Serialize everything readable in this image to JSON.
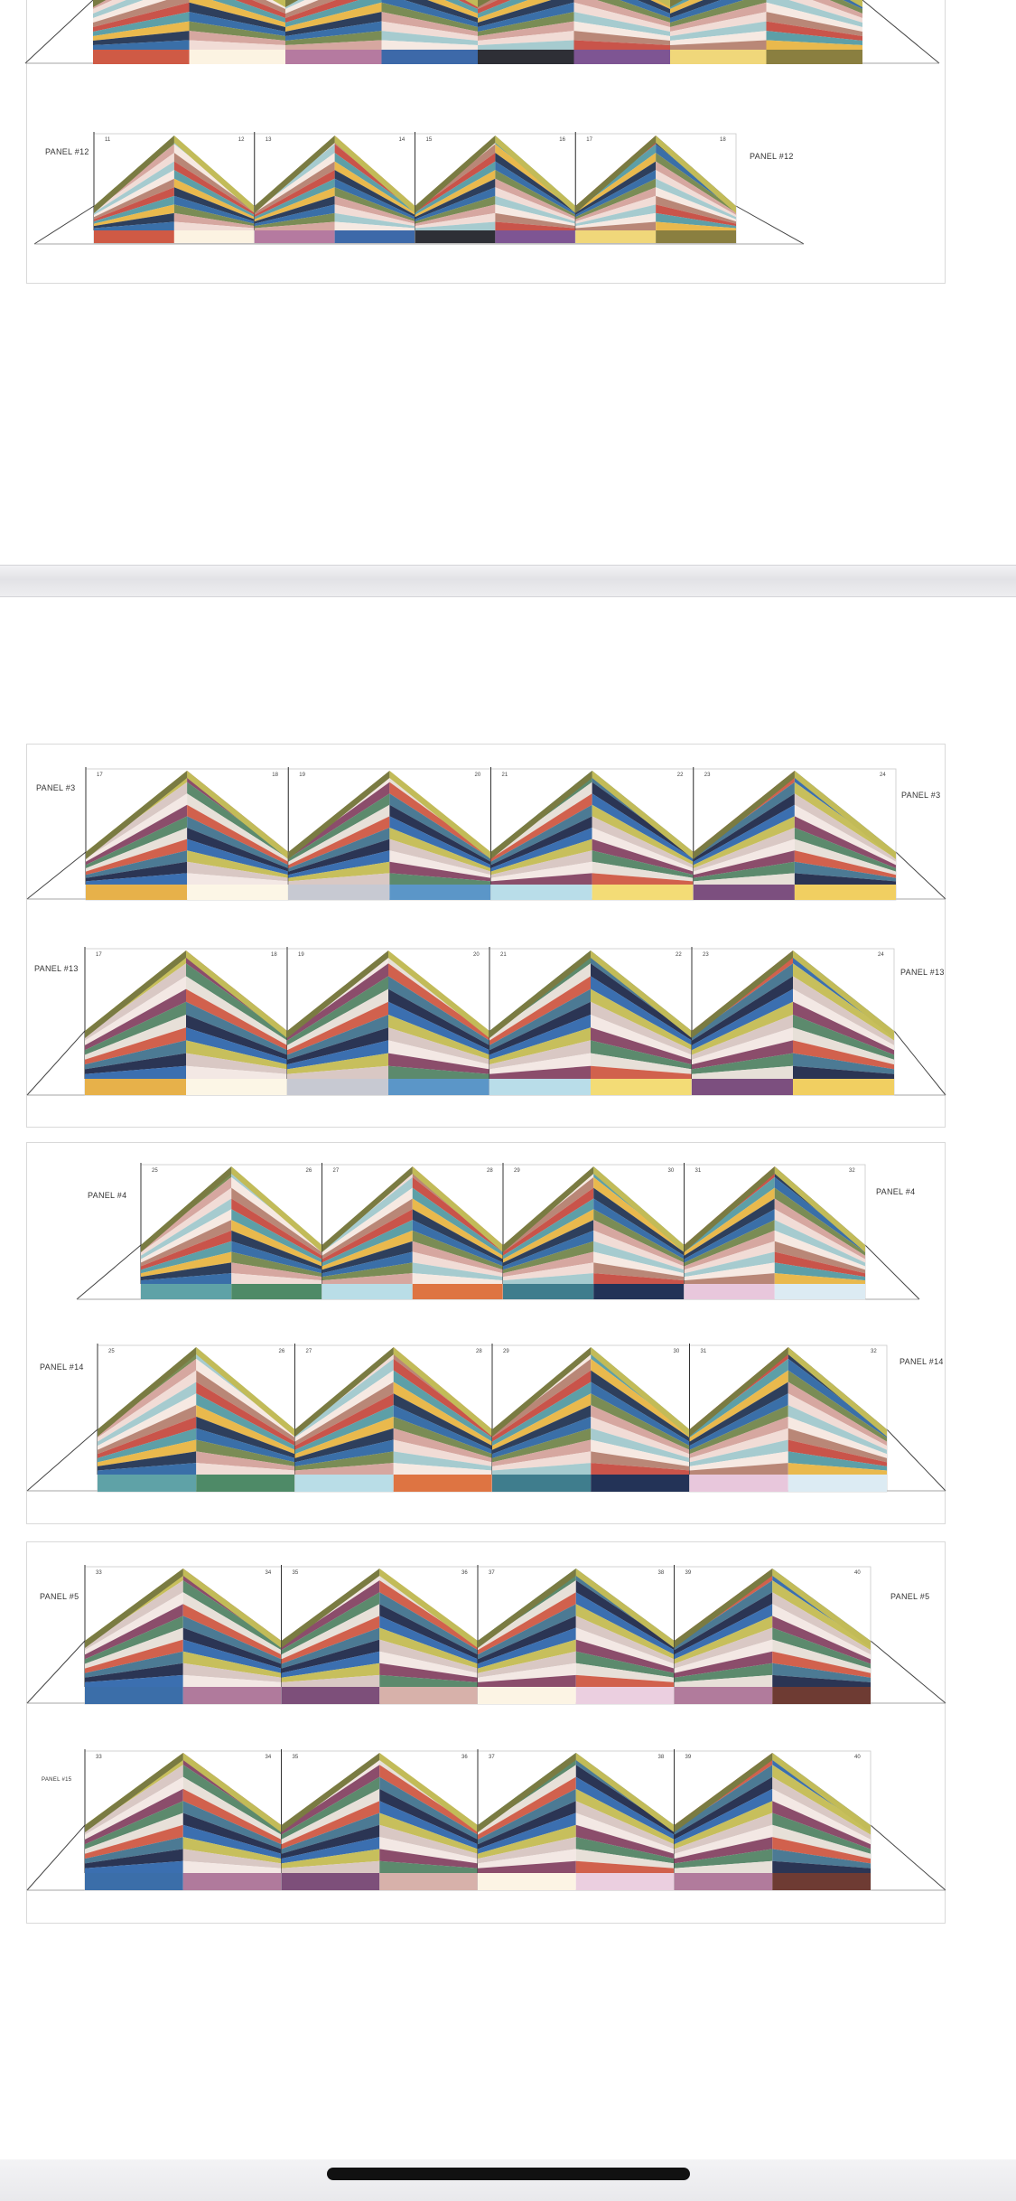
{
  "document": {
    "rows": [
      {
        "id": "r0",
        "labels": []
      },
      {
        "id": "r1",
        "labels": [
          "PANEL #12",
          "PANEL #12"
        ]
      },
      {
        "id": "r2",
        "labels": [
          "PANEL #3",
          "PANEL #3"
        ]
      },
      {
        "id": "r3",
        "labels": [
          "PANEL #13",
          "PANEL #13"
        ]
      },
      {
        "id": "r4",
        "labels": [
          "PANEL #4",
          "PANEL #4"
        ]
      },
      {
        "id": "r5",
        "labels": [
          "PANEL #14",
          "PANEL #14"
        ]
      },
      {
        "id": "r6",
        "labels": [
          "PANEL #5",
          "PANEL #5"
        ]
      },
      {
        "id": "r7",
        "labels": [
          "PANEL #15",
          ""
        ]
      }
    ]
  },
  "panel_colors": {
    "stripes_a": [
      "#7a8c55",
      "#d6a7a0",
      "#f1dcd6",
      "#a6cbcf",
      "#f6e9e2",
      "#b98777",
      "#c9544a",
      "#5d9fa7",
      "#e9b94d",
      "#2e3f5c",
      "#3a6fa8"
    ],
    "stripes_b": [
      "#c7bf5c",
      "#d9c8c4",
      "#f3e8e4",
      "#8b4d6b",
      "#5c8a6d",
      "#e7e0d8",
      "#d1614d",
      "#4c7a94",
      "#2b3554",
      "#3b6fb0"
    ],
    "blocks_a": [
      "#cf5a45",
      "#fcf3e2",
      "#b57aa0",
      "#3d69a9",
      "#2e2f36",
      "#7e5593",
      "#f0d77a",
      "#8a7f40"
    ],
    "blocks_b": [
      "#e7b14a",
      "#fcf6e6",
      "#c7c9d2",
      "#5b96c8",
      "#b9dde9",
      "#f3dc76",
      "#7c4f7f",
      "#f1cf61"
    ],
    "blocks_c": [
      "#5fa2a7",
      "#4e8a67",
      "#b9dde7",
      "#de7442",
      "#3f7d8d",
      "#233357",
      "#e8c7dc",
      "#dcebf3"
    ],
    "blocks_d": [
      "#3b6ea9",
      "#b07a9c",
      "#7d4f7a",
      "#d7b1aa",
      "#fcf4e4",
      "#ebcfe0",
      "#b17b9c",
      "#6e3b33"
    ],
    "page_gap": "#e6e6ea",
    "border": "#d9d9d9"
  },
  "page_numbers": {
    "r1": [
      "11",
      "12",
      "13",
      "14",
      "15",
      "16",
      "17",
      "18"
    ],
    "r2": [
      "17",
      "18",
      "19",
      "20",
      "21",
      "22",
      "23",
      "24"
    ],
    "r3": [
      "17",
      "18",
      "19",
      "20",
      "21",
      "22",
      "23",
      "24"
    ],
    "r4": [
      "25",
      "26",
      "27",
      "28",
      "29",
      "30",
      "31",
      "32"
    ],
    "r5": [
      "25",
      "26",
      "27",
      "28",
      "29",
      "30",
      "31",
      "32"
    ],
    "r6": [
      "33",
      "34",
      "35",
      "36",
      "37",
      "38",
      "39",
      "40"
    ],
    "r7": [
      "33",
      "34",
      "35",
      "36",
      "37",
      "38",
      "39",
      "40"
    ]
  }
}
